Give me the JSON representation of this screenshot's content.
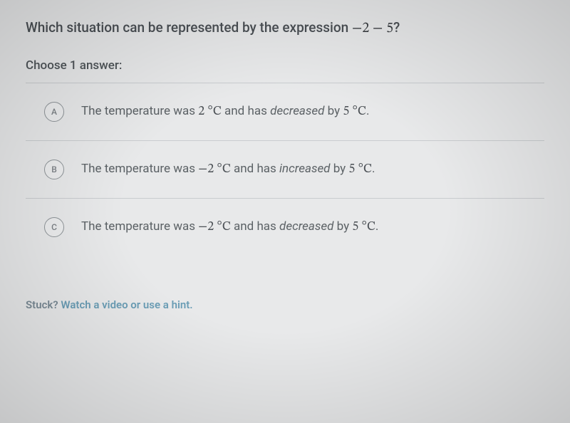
{
  "question": {
    "prefix": "Which situation can be represented by the expression ",
    "expression_parts": [
      "−2",
      " − ",
      "5"
    ],
    "suffix": "?"
  },
  "instruction": "Choose 1 answer:",
  "choices": [
    {
      "letter": "A",
      "parts": {
        "p1": "The temperature was ",
        "v1": "2",
        "unit1": " °C",
        "mid": " and has ",
        "verb": "decreased",
        "p2": " by ",
        "v2": "5",
        "unit2": " °C",
        "end": "."
      }
    },
    {
      "letter": "B",
      "parts": {
        "p1": "The temperature was ",
        "v1": "−2",
        "unit1": " °C",
        "mid": " and has ",
        "verb": "increased",
        "p2": " by ",
        "v2": "5",
        "unit2": " °C",
        "end": "."
      }
    },
    {
      "letter": "C",
      "parts": {
        "p1": "The temperature was ",
        "v1": "−2",
        "unit1": " °C",
        "mid": " and has ",
        "verb": "decreased",
        "p2": " by ",
        "v2": "5",
        "unit2": " °C",
        "end": "."
      }
    }
  ],
  "hint": {
    "lead": "Stuck? ",
    "link": "Watch a video or use a hint."
  },
  "style": {
    "text_color": "#4a4f54",
    "border_color": "#c9cccf",
    "hint_link_color": "#6a9db5"
  }
}
